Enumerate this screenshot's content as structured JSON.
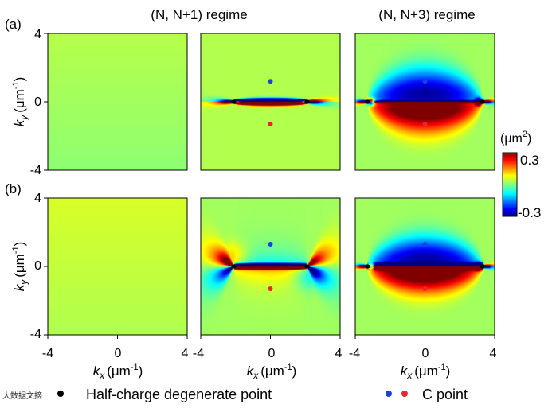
{
  "chart_data": {
    "type": "heatmap",
    "title_left": "(N, N+1) regime",
    "title_right": "(N, N+3) regime",
    "row_labels": [
      "(a)",
      "(b)"
    ],
    "x_axis": {
      "var": "k",
      "sub": "x",
      "unit": "(μm",
      "sup": "-1",
      "close": ")",
      "range": [
        -4,
        4
      ],
      "ticks": [
        "-4",
        "0",
        "4"
      ]
    },
    "y_axis": {
      "var": "k",
      "sub": "y",
      "unit": "(μm",
      "sup": "-1",
      "close": ")",
      "range": [
        -4,
        4
      ],
      "ticks": [
        "4",
        "0",
        "-4"
      ]
    },
    "colorbar": {
      "unit_prefix": "(μm",
      "unit_sup": "2",
      "unit_suffix": ")",
      "max_label": "0.3",
      "min_label": "-0.3",
      "range": [
        -0.3,
        0.3
      ],
      "colormap": "jet"
    },
    "panels": [
      {
        "row": "a",
        "col": 1,
        "regime": "N, N+1",
        "variant": "uniform",
        "value": 0.02,
        "half_charge_points": [],
        "c_points": []
      },
      {
        "row": "a",
        "col": 2,
        "regime": "N, N+1",
        "variant": "a2",
        "half_charge_points": [
          [
            -2.1,
            0
          ],
          [
            2.1,
            0
          ]
        ],
        "c_points": [
          {
            "x": 0,
            "y": 1.2,
            "color": "#1f3fe0"
          },
          {
            "x": 0,
            "y": -1.3,
            "color": "#e8262e"
          }
        ]
      },
      {
        "row": "a",
        "col": 3,
        "regime": "N, N+3",
        "variant": "a3",
        "half_charge_points": [
          [
            -3.3,
            0
          ],
          [
            3.3,
            0
          ]
        ],
        "c_points": [
          {
            "x": 0,
            "y": 1.2,
            "color": "#1f3fe0"
          },
          {
            "x": 0,
            "y": -1.3,
            "color": "#e8262e"
          }
        ]
      },
      {
        "row": "b",
        "col": 1,
        "regime": "N, N+1",
        "variant": "uniform",
        "value": 0.04,
        "half_charge_points": [],
        "c_points": []
      },
      {
        "row": "b",
        "col": 2,
        "regime": "N, N+1",
        "variant": "b2",
        "half_charge_points": [
          [
            -2.1,
            0
          ],
          [
            2.1,
            0
          ]
        ],
        "c_points": [
          {
            "x": 0,
            "y": 1.3,
            "color": "#1f3fe0"
          },
          {
            "x": 0,
            "y": -1.3,
            "color": "#e8262e"
          }
        ]
      },
      {
        "row": "b",
        "col": 3,
        "regime": "N, N+3",
        "variant": "b3",
        "half_charge_points": [
          [
            -3.3,
            0
          ],
          [
            3.3,
            0
          ]
        ],
        "c_points": [
          {
            "x": 0,
            "y": 1.3,
            "color": "#1f3fe0"
          },
          {
            "x": 0,
            "y": -1.3,
            "color": "#e8262e"
          }
        ]
      }
    ],
    "legend": {
      "half_charge_label": "Half-charge degenerate point",
      "c_point_label": "C point",
      "half_charge_color": "#000000",
      "c_point_colors": [
        "#1f3fe0",
        "#e8262e"
      ]
    },
    "watermark": "大数据文摘"
  }
}
